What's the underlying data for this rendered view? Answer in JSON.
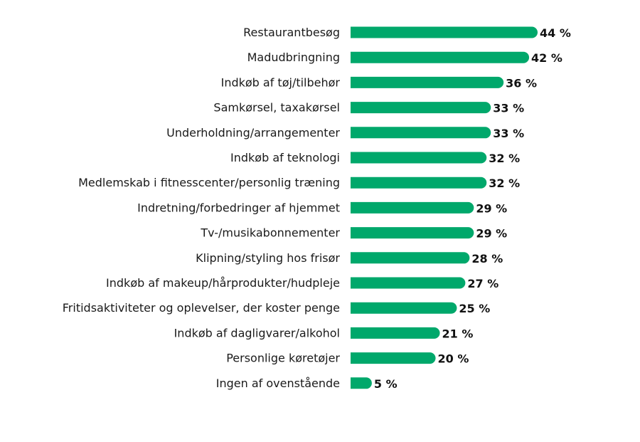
{
  "chart_data": {
    "type": "bar",
    "orientation": "horizontal",
    "categories": [
      "Restaurantbesøg",
      "Madudbringning",
      "Indkøb af tøj/tilbehør",
      "Samkørsel, taxakørsel",
      "Underholdning/arrangementer",
      "Indkøb af teknologi",
      "Medlemskab i fitnesscenter/personlig træning",
      "Indretning/forbedringer af hjemmet",
      "Tv-/musikabonnementer",
      "Klipning/styling hos frisør",
      "Indkøb af makeup/hårprodukter/hudpleje",
      "Fritidsaktiviteter og oplevelser, der koster penge",
      "Indkøb af dagligvarer/alkohol",
      "Personlige køretøjer",
      "Ingen af ovenstående"
    ],
    "values": [
      44,
      42,
      36,
      33,
      33,
      32,
      32,
      29,
      29,
      28,
      27,
      25,
      21,
      20,
      5
    ],
    "value_labels": [
      "44 %",
      "42 %",
      "36 %",
      "33 %",
      "33 %",
      "32 %",
      "32 %",
      "29 %",
      "29 %",
      "28 %",
      "27 %",
      "25 %",
      "21 %",
      "20 %",
      "5 %"
    ],
    "bar_color": "#00a86b",
    "xlim": [
      0,
      44
    ],
    "grid": false,
    "legend": "none",
    "title": "",
    "xlabel": "",
    "ylabel": ""
  }
}
